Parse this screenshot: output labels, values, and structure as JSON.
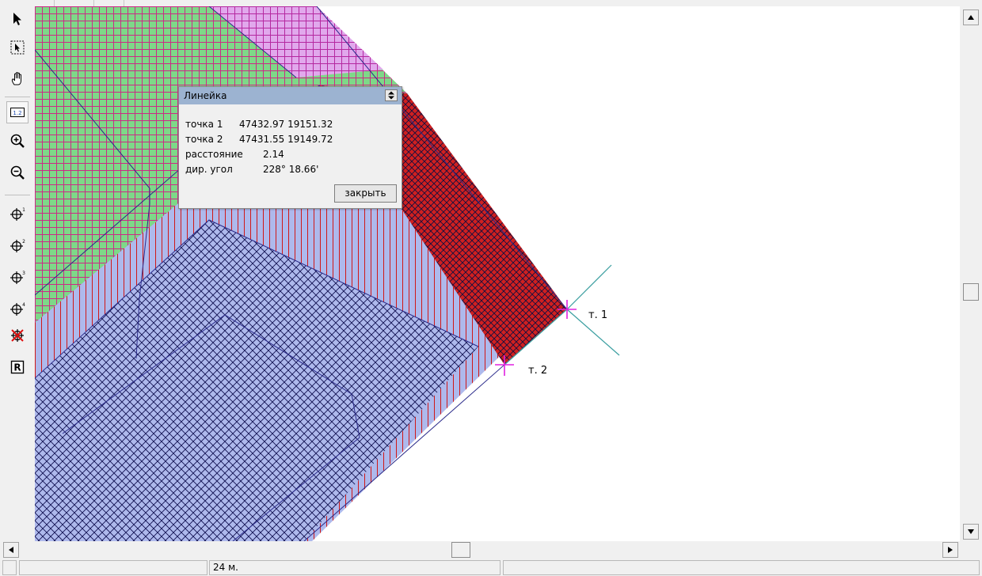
{
  "toolbar": {
    "tools": [
      {
        "name": "select-arrow-icon"
      },
      {
        "name": "box-select-icon"
      },
      {
        "name": "pan-hand-icon"
      },
      {
        "name": "ruler-icon",
        "label": "1.2",
        "active": true
      },
      {
        "name": "zoom-in-icon"
      },
      {
        "name": "zoom-out-icon"
      },
      {
        "name": "point-1-icon",
        "label": "1"
      },
      {
        "name": "point-2-icon",
        "label": "2"
      },
      {
        "name": "point-3-icon",
        "label": "3"
      },
      {
        "name": "point-4-icon",
        "label": "4"
      },
      {
        "name": "delete-points-icon"
      },
      {
        "name": "r-icon",
        "label": "R"
      }
    ]
  },
  "ruler": {
    "title": "Линейка",
    "point1_label": "точка 1",
    "point1_value": "47432.97 19151.32",
    "point2_label": "точка 2",
    "point2_value": "47431.55 19149.72",
    "distance_label": "расстояние",
    "distance_value": "2.14",
    "angle_label": "дир. угол",
    "angle_value": "228° 18.66'",
    "close_label": "закрыть"
  },
  "map": {
    "point1_label": "т. 1",
    "point2_label": "т. 2",
    "colors": {
      "green_fill": "#7ed888",
      "green_grid": "#cc2a86",
      "blue_fill": "#aeb9ec",
      "red_hatch": "#d01818",
      "magenta_fill": "#e1a8ec",
      "magenta_grid": "#b528a0",
      "cross_hatch": "#101050",
      "outline": "#2a2a8a",
      "teal_line": "#3a9ea0",
      "marker": "#e020e0"
    }
  },
  "status": {
    "scale": "24 м."
  }
}
